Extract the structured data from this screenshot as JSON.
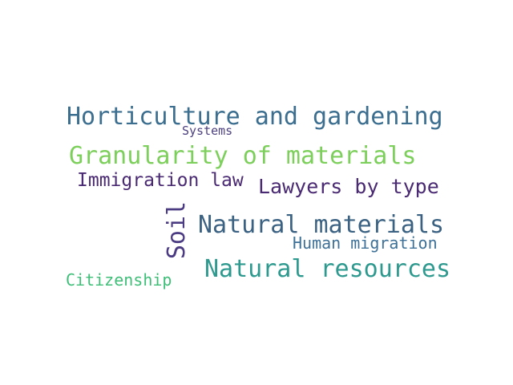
{
  "words": [
    {
      "text": "Horticulture and gardening",
      "color": "#3b6e8f"
    },
    {
      "text": "Systems",
      "color": "#4b3f7f"
    },
    {
      "text": "Granularity of materials",
      "color": "#7ccf5a"
    },
    {
      "text": "Immigration law",
      "color": "#4a2a72"
    },
    {
      "text": "Lawyers by type",
      "color": "#4a2a72"
    },
    {
      "text": "Soil",
      "color": "#4b3b82"
    },
    {
      "text": "Natural materials",
      "color": "#3b6282"
    },
    {
      "text": "Human migration",
      "color": "#3e7197"
    },
    {
      "text": "Natural resources",
      "color": "#2e9a8f"
    },
    {
      "text": "Citizenship",
      "color": "#3fbe78"
    }
  ]
}
